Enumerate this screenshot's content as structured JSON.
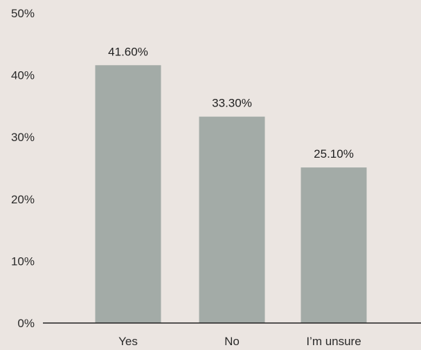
{
  "chart_data": {
    "type": "bar",
    "categories": [
      "Yes",
      "No",
      "I’m unsure"
    ],
    "values": [
      41.6,
      33.3,
      25.1
    ],
    "data_labels": [
      "41.60%",
      "33.30%",
      "25.10%"
    ],
    "ylim": [
      0,
      50
    ],
    "y_ticks": [
      0,
      10,
      20,
      30,
      40,
      50
    ],
    "y_tick_labels": [
      "0%",
      "10%",
      "20%",
      "30%",
      "40%",
      "50%"
    ],
    "grid": false,
    "bar_color": "#a3aba7",
    "axis_color": "#1f1f1f",
    "background": "#ebe5e1"
  }
}
